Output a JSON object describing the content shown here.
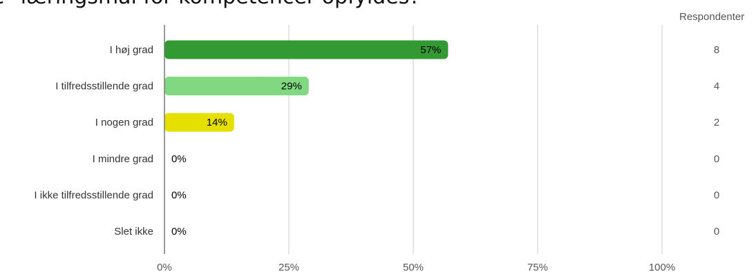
{
  "title": "e \"læringsmål for kompetencer opfyldes?",
  "respondents_header": "Respondenter",
  "chart_data": {
    "type": "bar",
    "orientation": "horizontal",
    "categories": [
      "I høj grad",
      "I tilfredsstillende grad",
      "I nogen grad",
      "I mindre grad",
      "I ikke tilfredsstillende grad",
      "Slet ikke"
    ],
    "values": [
      57,
      29,
      14,
      0,
      0,
      0
    ],
    "value_labels": [
      "57%",
      "29%",
      "14%",
      "0%",
      "0%",
      "0%"
    ],
    "respondents": [
      "8",
      "4",
      "2",
      "0",
      "0",
      "0"
    ],
    "colors": [
      "#339933",
      "#80d880",
      "#e6e000",
      "#339933",
      "#339933",
      "#339933"
    ],
    "x_ticks": [
      "0%",
      "25%",
      "50%",
      "75%",
      "100%"
    ],
    "xlim": [
      0,
      100
    ],
    "grid": true
  }
}
